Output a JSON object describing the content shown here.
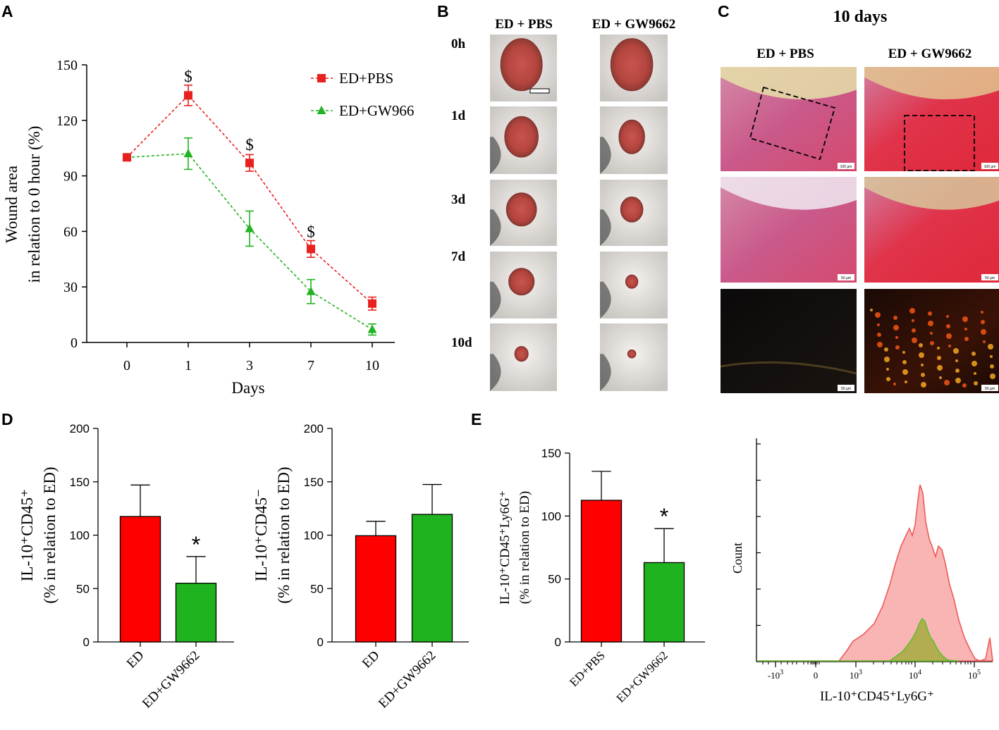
{
  "panels": {
    "A": {
      "letter": "A",
      "chart_data": {
        "type": "line",
        "x": [
          0,
          1,
          3,
          7,
          10
        ],
        "x_tick_labels": [
          "0",
          "1",
          "3",
          "7",
          "10"
        ],
        "xlabel": "Days",
        "ylabel_line1": "Wound area",
        "ylabel_line2": "in relation to 0 hour (%)",
        "ylim": [
          0,
          150
        ],
        "y_ticks": [
          0,
          30,
          60,
          90,
          120,
          150
        ],
        "series": [
          {
            "name": "ED+PBS",
            "color": "#e8201e",
            "marker": "square",
            "values": [
              100,
              133.5,
              97,
              50.5,
              21
            ],
            "errors": [
              0,
              5.5,
              4.5,
              4.5,
              3.5
            ]
          },
          {
            "name": "ED+GW966",
            "color": "#22b322",
            "marker": "triangle",
            "values": [
              100,
              102,
              61.5,
              27.5,
              7
            ],
            "errors": [
              0,
              8.5,
              9.5,
              6.5,
              3
            ]
          }
        ],
        "annotations": [
          {
            "x": 1,
            "y": 147,
            "text": "$"
          },
          {
            "x": 3,
            "y": 110,
            "text": "$"
          },
          {
            "x": 7,
            "y": 63,
            "text": "$"
          }
        ]
      }
    },
    "B": {
      "letter": "B",
      "col_headers": [
        "ED + PBS",
        "ED + GW9662"
      ],
      "row_labels": [
        "0h",
        "1d",
        "3d",
        "7d",
        "10d"
      ]
    },
    "C": {
      "letter": "C",
      "title": "10 days",
      "col_headers": [
        "ED + PBS",
        "ED + GW9662"
      ],
      "scale_labels": [
        "100 µm",
        "100 µm",
        "50 µm",
        "50 µm",
        "50 µm",
        "50 µm"
      ]
    },
    "D": {
      "letter": "D",
      "charts": [
        {
          "type": "bar",
          "ylabel_line1": "IL-10⁺CD45⁺",
          "ylabel_line2": "(% in relation to ED)",
          "categories": [
            "ED",
            "ED+GW9662"
          ],
          "values": [
            117.5,
            55
          ],
          "errors": [
            29.5,
            25
          ],
          "colors": [
            "#ff0000",
            "#1fb31f"
          ],
          "ylim": [
            0,
            200
          ],
          "y_ticks": [
            0,
            50,
            100,
            150,
            200
          ],
          "significance": [
            "",
            "*"
          ]
        },
        {
          "type": "bar",
          "ylabel_line1": "IL-10⁺CD45⁻",
          "ylabel_line2": "(% in relation to ED)",
          "categories": [
            "ED",
            "ED+GW9662"
          ],
          "values": [
            99.5,
            119.5
          ],
          "errors": [
            13.5,
            28
          ],
          "colors": [
            "#ff0000",
            "#1fb31f"
          ],
          "ylim": [
            0,
            200
          ],
          "y_ticks": [
            0,
            50,
            100,
            150,
            200
          ],
          "significance": [
            "",
            ""
          ]
        }
      ]
    },
    "E": {
      "letter": "E",
      "bar_chart": {
        "type": "bar",
        "ylabel_line1": "IL-10⁺CD45⁺Ly6G⁺",
        "ylabel_line2": "(% in relation to ED)",
        "categories": [
          "ED+PBS",
          "ED+GW9662"
        ],
        "values": [
          112.5,
          63
        ],
        "errors": [
          23,
          27
        ],
        "colors": [
          "#ff0000",
          "#1fb31f"
        ],
        "ylim": [
          0,
          150
        ],
        "y_ticks": [
          0,
          50,
          100,
          150
        ],
        "significance": [
          "",
          "*"
        ]
      },
      "histogram": {
        "type": "area",
        "ylabel": "Count",
        "xlabel": "IL-10⁺CD45⁺Ly6G⁺",
        "x_tick_labels": [
          {
            "base": "-10",
            "exp": "3"
          },
          {
            "base": "0",
            "exp": ""
          },
          {
            "base": "10",
            "exp": "3"
          },
          {
            "base": "10",
            "exp": "4"
          },
          {
            "base": "10",
            "exp": "5"
          }
        ],
        "series": [
          {
            "name": "ED+PBS",
            "fill": "#f9b4b4",
            "stroke": "#ee5a5a"
          },
          {
            "name": "ED+GW9662",
            "fill": "#b3ad52",
            "stroke": "#5cbf2a"
          }
        ]
      }
    }
  }
}
